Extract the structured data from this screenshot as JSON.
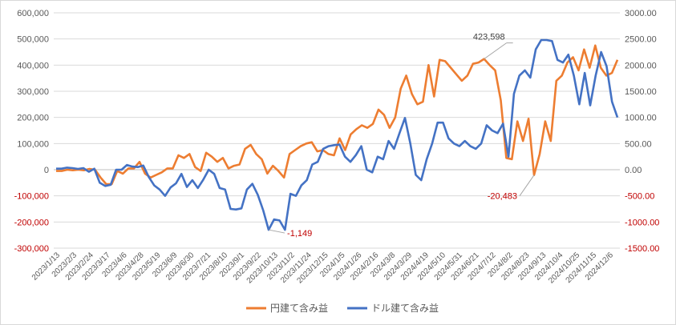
{
  "chart_data": {
    "type": "line",
    "title": "",
    "xlabel": "",
    "ylabel": "",
    "grid": true,
    "legend_position": "bottom",
    "colors": {
      "yen_series": "#ED7D31",
      "usd_series": "#4472C4",
      "right_axis_text": "#C00000",
      "left_axis_text": "#C00000",
      "grid": "#D9D9D9"
    },
    "ylim_left": [
      -300000,
      600000
    ],
    "ylim_right": [
      -1500,
      3000
    ],
    "left_ticks": [
      600000,
      500000,
      400000,
      300000,
      200000,
      100000,
      0,
      -100000,
      -200000,
      -300000
    ],
    "left_tick_labels": [
      "600,000",
      "500,000",
      "400,000",
      "300,000",
      "200,000",
      "100,000",
      "0",
      "-100,000",
      "-200,000",
      "-300,000"
    ],
    "right_ticks": [
      3000,
      2500,
      2000,
      1500,
      1000,
      500,
      0,
      -500,
      -1000,
      -1500
    ],
    "right_tick_labels": [
      "3000.00",
      "2500.00",
      "2000.00",
      "1500.00",
      "1000.00",
      "500.00",
      "0.00",
      "-500.00",
      "-1000.00",
      "-1500.00"
    ],
    "x_tick_labels": [
      "2023/1/13",
      "2023/2/3",
      "2023/2/24",
      "2023/3/17",
      "2023/4/6",
      "2023/4/28",
      "2023/5/19",
      "2023/6/9",
      "2023/6/30",
      "2023/7/21",
      "2023/8/10",
      "2023/9/1",
      "2023/9/22",
      "2023/10/13",
      "2023/11/2",
      "2023/11/24",
      "2023/12/15",
      "2024/1/5",
      "2024/1/26",
      "2024/2/16",
      "2024/3/8",
      "2024/3/29",
      "2024/4/19",
      "2024/5/10",
      "2024/5/31",
      "2024/6/21",
      "2024/7/12",
      "2024/8/2",
      "2024/8/23",
      "2024/9/13",
      "2024/10/4",
      "2024/10/25",
      "2024/11/15",
      "2024/12/6"
    ],
    "series": [
      {
        "name": "円建て含み益",
        "axis": "left",
        "values": [
          -5000,
          -5000,
          0,
          -2000,
          0,
          -2000,
          3000,
          0,
          -30000,
          -55000,
          -55000,
          -5000,
          -15000,
          5000,
          5000,
          30000,
          -15000,
          -30000,
          -20000,
          -10000,
          5000,
          5000,
          55000,
          45000,
          60000,
          10000,
          -5000,
          65000,
          50000,
          30000,
          45000,
          5000,
          15000,
          20000,
          80000,
          95000,
          60000,
          40000,
          -15000,
          15000,
          -5000,
          -30000,
          60000,
          75000,
          90000,
          100000,
          105000,
          70000,
          75000,
          60000,
          55000,
          120000,
          75000,
          135000,
          155000,
          170000,
          160000,
          175000,
          230000,
          210000,
          160000,
          200000,
          310000,
          360000,
          290000,
          250000,
          260000,
          400000,
          280000,
          420000,
          415000,
          390000,
          365000,
          340000,
          360000,
          405000,
          410000,
          423598,
          400000,
          380000,
          265000,
          45000,
          40000,
          185000,
          110000,
          195000,
          -20483,
          60000,
          185000,
          110000,
          340000,
          360000,
          410000,
          430000,
          380000,
          460000,
          390000,
          475000,
          390000,
          360000,
          370000,
          420000
        ]
      },
      {
        "name": "ドル建て含み益",
        "axis": "right",
        "values": [
          20,
          20,
          40,
          30,
          15,
          30,
          -40,
          20,
          -250,
          -310,
          -290,
          0,
          0,
          90,
          60,
          50,
          80,
          -140,
          -300,
          -380,
          -500,
          -340,
          -260,
          -80,
          -330,
          -200,
          -350,
          -190,
          0,
          -80,
          -350,
          -380,
          -750,
          -760,
          -740,
          -380,
          -270,
          -480,
          -780,
          -1149,
          -950,
          -970,
          -1149,
          -460,
          -500,
          -300,
          -200,
          100,
          150,
          400,
          450,
          470,
          480,
          250,
          150,
          280,
          450,
          0,
          -50,
          250,
          200,
          550,
          400,
          700,
          990,
          500,
          -100,
          -200,
          200,
          500,
          900,
          900,
          600,
          500,
          450,
          550,
          450,
          400,
          500,
          850,
          750,
          700,
          880,
          250,
          1450,
          1800,
          1900,
          1760,
          2300,
          2480,
          2480,
          2460,
          2100,
          2050,
          2200,
          1800,
          1250,
          1850,
          1230,
          1800,
          2250,
          1980,
          1300,
          1000
        ]
      }
    ],
    "annotations": [
      {
        "text": "423,598",
        "series": 0,
        "index": 77
      },
      {
        "text": "-20,483",
        "series": 0,
        "index": 86
      },
      {
        "text": "-1,149",
        "series": 1,
        "index": 39
      }
    ]
  }
}
